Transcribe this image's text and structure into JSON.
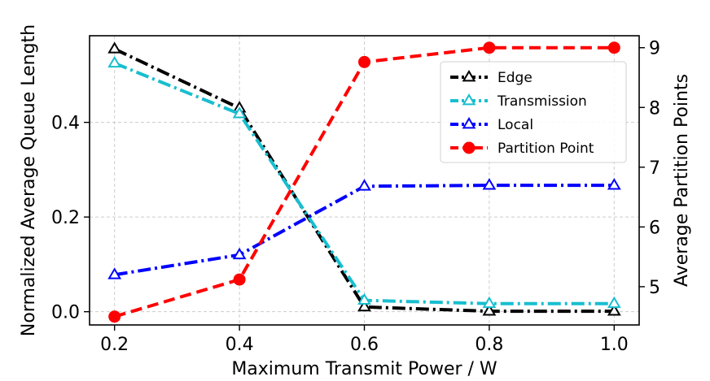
{
  "chart_data": {
    "type": "line",
    "title": "",
    "xlabel": "Maximum Transmit Power / W",
    "ylabel": "Normalized Average Queue Length",
    "y2label": "Average Partition Points",
    "x": [
      0.2,
      0.4,
      0.6,
      0.8,
      1.0
    ],
    "x_ticks": [
      "0.2",
      "0.4",
      "0.6",
      "0.8",
      "1.0"
    ],
    "xlim": [
      0.16,
      1.04
    ],
    "ylim": [
      -0.028,
      0.583
    ],
    "y_ticks": [
      "0.0",
      "0.2",
      "0.4"
    ],
    "y_tick_values": [
      0.0,
      0.2,
      0.4
    ],
    "y2lim": [
      4.36,
      9.2
    ],
    "y2_ticks": [
      "5",
      "6",
      "7",
      "8",
      "9"
    ],
    "y2_tick_values": [
      5,
      6,
      7,
      8,
      9
    ],
    "grid": true,
    "legend_position": "right",
    "series": [
      {
        "name": "Edge",
        "axis": "left",
        "color": "#000000",
        "style": "dashdot",
        "marker": "triangle-open",
        "values": [
          0.555,
          0.43,
          0.01,
          0.001,
          0.001
        ]
      },
      {
        "name": "Transmission",
        "axis": "left",
        "color": "#17becf",
        "style": "dashdot",
        "marker": "triangle-open",
        "values": [
          0.525,
          0.418,
          0.024,
          0.017,
          0.017
        ]
      },
      {
        "name": "Local",
        "axis": "left",
        "color": "#0000ff",
        "style": "dashdot",
        "marker": "triangle-open",
        "values": [
          0.078,
          0.12,
          0.265,
          0.267,
          0.267
        ]
      },
      {
        "name": "Partition Point",
        "axis": "right",
        "color": "#ff0000",
        "style": "dashed",
        "marker": "circle-filled",
        "values": [
          4.5,
          5.12,
          8.76,
          9.0,
          9.0
        ]
      }
    ]
  }
}
